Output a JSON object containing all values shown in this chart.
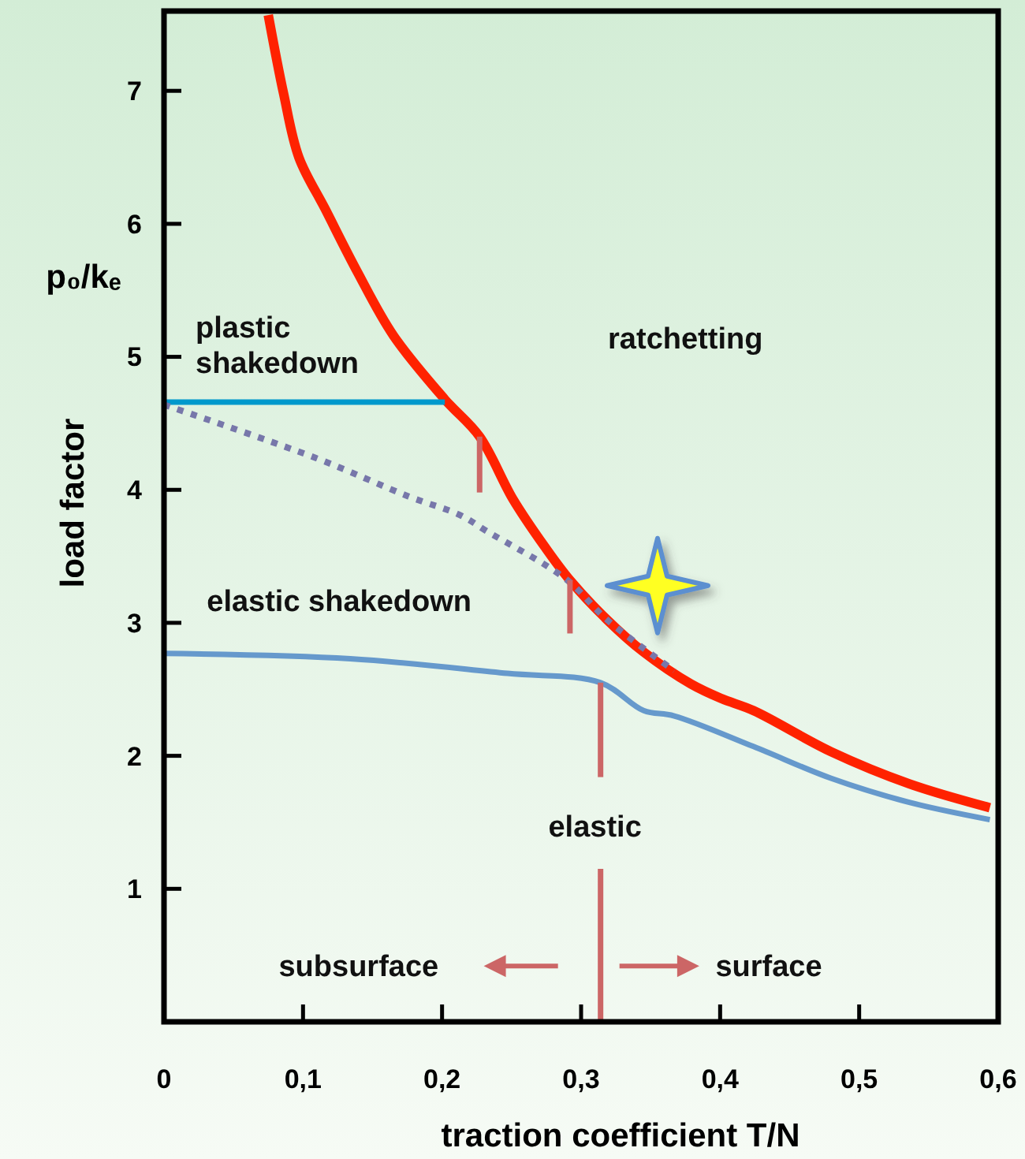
{
  "chart_data": {
    "type": "line",
    "xlabel": "traction coefficient T/N",
    "ylabel": "load factor",
    "xlim": [
      0,
      0.6
    ],
    "ylim": [
      0,
      7.6
    ],
    "xticks": [
      0,
      {
        "value": 0.1,
        "label": "0,1"
      },
      {
        "value": 0.2,
        "label": "0,2"
      },
      {
        "value": 0.3,
        "label": "0,3"
      },
      {
        "value": 0.4,
        "label": "0,4"
      },
      {
        "value": 0.5,
        "label": "0,5"
      },
      {
        "value": 0.6,
        "label": "0,6"
      }
    ],
    "yticks": [
      1,
      2,
      3,
      4,
      5,
      6,
      7
    ],
    "grid": false,
    "marker": "none",
    "series": [
      {
        "color": "#ff2200",
        "line_style": "solid",
        "x": [
          0.075,
          0.086,
          0.097,
          0.116,
          0.139,
          0.165,
          0.202,
          0.227,
          0.251,
          0.274,
          0.292,
          0.319,
          0.345,
          0.379,
          0.401,
          0.424,
          0.48,
          0.536,
          0.594
        ],
        "values": [
          7.57,
          6.98,
          6.5,
          6.11,
          5.64,
          5.16,
          4.68,
          4.4,
          3.93,
          3.57,
          3.32,
          3.02,
          2.78,
          2.54,
          2.43,
          2.34,
          2.03,
          1.79,
          1.61
        ]
      },
      {
        "color": "#0099cc",
        "line_style": "solid",
        "x": [
          0,
          0.202
        ],
        "values": [
          4.66,
          4.66
        ]
      },
      {
        "color": "#7777aa",
        "line_style": "dotted",
        "x": [
          0,
          0.109,
          0.176,
          0.213,
          0.232,
          0.289,
          0.319,
          0.367
        ],
        "values": [
          4.64,
          4.24,
          3.95,
          3.81,
          3.69,
          3.33,
          3.02,
          2.64
        ]
      },
      {
        "color": "#6699cc",
        "line_style": "solid",
        "x": [
          0,
          0.134,
          0.247,
          0.314,
          0.345,
          0.367,
          0.424,
          0.48,
          0.536,
          0.594
        ],
        "values": [
          2.77,
          2.73,
          2.62,
          2.55,
          2.34,
          2.3,
          2.07,
          1.83,
          1.65,
          1.52
        ]
      },
      {
        "color": "#cc6666",
        "line_style": "solid",
        "x": [
          0.227,
          0.227
        ],
        "values": [
          4.4,
          3.98
        ]
      },
      {
        "color": "#cc6666",
        "line_style": "solid",
        "x": [
          0.292,
          0.292
        ],
        "values": [
          3.32,
          2.92
        ]
      },
      {
        "color": "#cc6666",
        "line_style": "solid",
        "x": [
          0.314,
          0.314
        ],
        "values": [
          2.55,
          1.84
        ]
      },
      {
        "color": "#cc6666",
        "line_style": "solid",
        "x": [
          0.314,
          0.314
        ],
        "values": [
          1.15,
          0
        ]
      }
    ],
    "annotations": [
      "p₀/kₑ",
      "plastic shakedown",
      "ratchetting",
      "elastic shakedown",
      "elastic",
      "subsurface",
      "surface"
    ]
  }
}
